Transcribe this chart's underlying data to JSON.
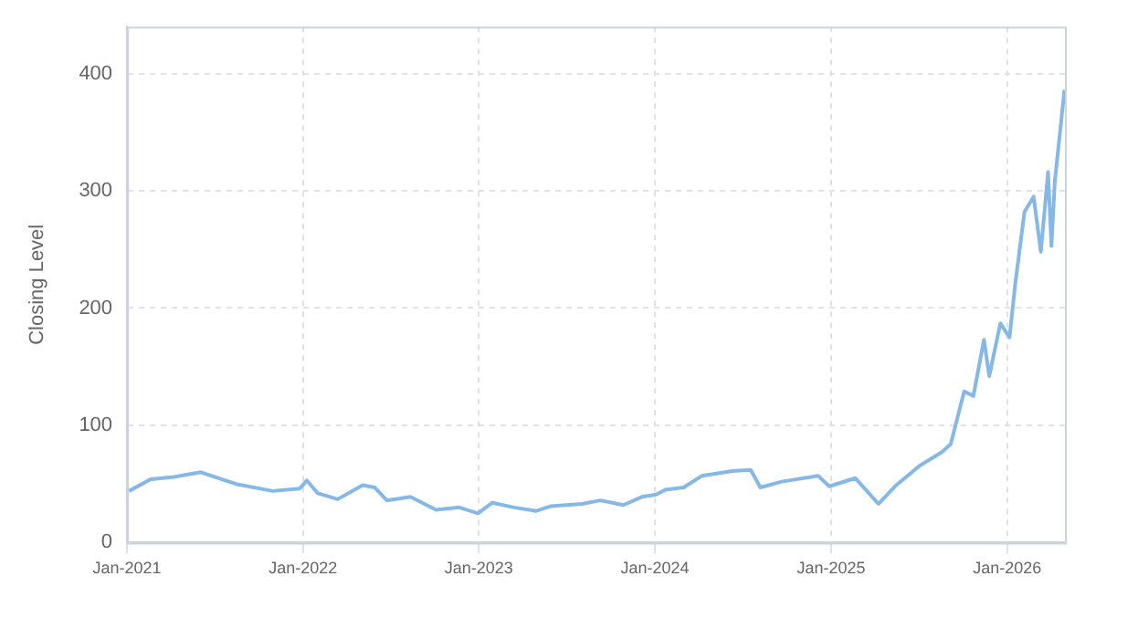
{
  "chart_data": {
    "type": "line",
    "ylabel": "Closing Level",
    "x": [
      "2021-01-05",
      "2021-02-19",
      "2021-04-08",
      "2021-06-03",
      "2021-08-15",
      "2021-10-30",
      "2021-12-25",
      "2022-01-09",
      "2022-02-01",
      "2022-03-14",
      "2022-05-05",
      "2022-05-30",
      "2022-06-24",
      "2022-08-12",
      "2022-10-04",
      "2022-11-21",
      "2022-12-30",
      "2023-01-29",
      "2023-03-15",
      "2023-04-30",
      "2023-05-30",
      "2023-08-03",
      "2023-09-10",
      "2023-10-28",
      "2023-12-05",
      "2024-01-04",
      "2024-01-23",
      "2024-03-01",
      "2024-04-08",
      "2024-06-10",
      "2024-07-18",
      "2024-08-07",
      "2024-09-20",
      "2024-12-05",
      "2024-12-28",
      "2025-02-20",
      "2025-03-14",
      "2025-04-09",
      "2025-05-16",
      "2025-07-05",
      "2025-08-18",
      "2025-09-06",
      "2025-09-19",
      "2025-10-04",
      "2025-10-23",
      "2025-11-14",
      "2025-11-25",
      "2025-12-18",
      "2026-01-06",
      "2026-01-18",
      "2026-02-06",
      "2026-02-25",
      "2026-03-12",
      "2026-03-27",
      "2026-04-03",
      "2026-04-10",
      "2026-04-30"
    ],
    "series": [
      {
        "color": "#85b8e6",
        "values": [
          44,
          54,
          56,
          60,
          50,
          44,
          46,
          53,
          42,
          37,
          49,
          47,
          36,
          39,
          28,
          30,
          25,
          34,
          30,
          27,
          31,
          33,
          36,
          32,
          39,
          41,
          45,
          47,
          57,
          61,
          62,
          47,
          52,
          57,
          48,
          55,
          45,
          33,
          49,
          66,
          77,
          84,
          105,
          129,
          125,
          173,
          142,
          187,
          175,
          221,
          282,
          295,
          248,
          316,
          253,
          308,
          386
        ]
      }
    ],
    "xlim": [
      "2021-01-01",
      "2026-05-01"
    ],
    "xticks": [
      {
        "value": "2021-01",
        "label": "Jan-2021"
      },
      {
        "value": "2022-01",
        "label": "Jan-2022"
      },
      {
        "value": "2023-01",
        "label": "Jan-2023"
      },
      {
        "value": "2024-01",
        "label": "Jan-2024"
      },
      {
        "value": "2025-01",
        "label": "Jan-2025"
      },
      {
        "value": "2026-01",
        "label": "Jan-2026"
      }
    ],
    "ylim": [
      0,
      440
    ],
    "yticks": [
      0,
      100,
      200,
      300,
      400
    ],
    "grid": true,
    "legend": false,
    "marker": "none",
    "line_style": "solid"
  }
}
